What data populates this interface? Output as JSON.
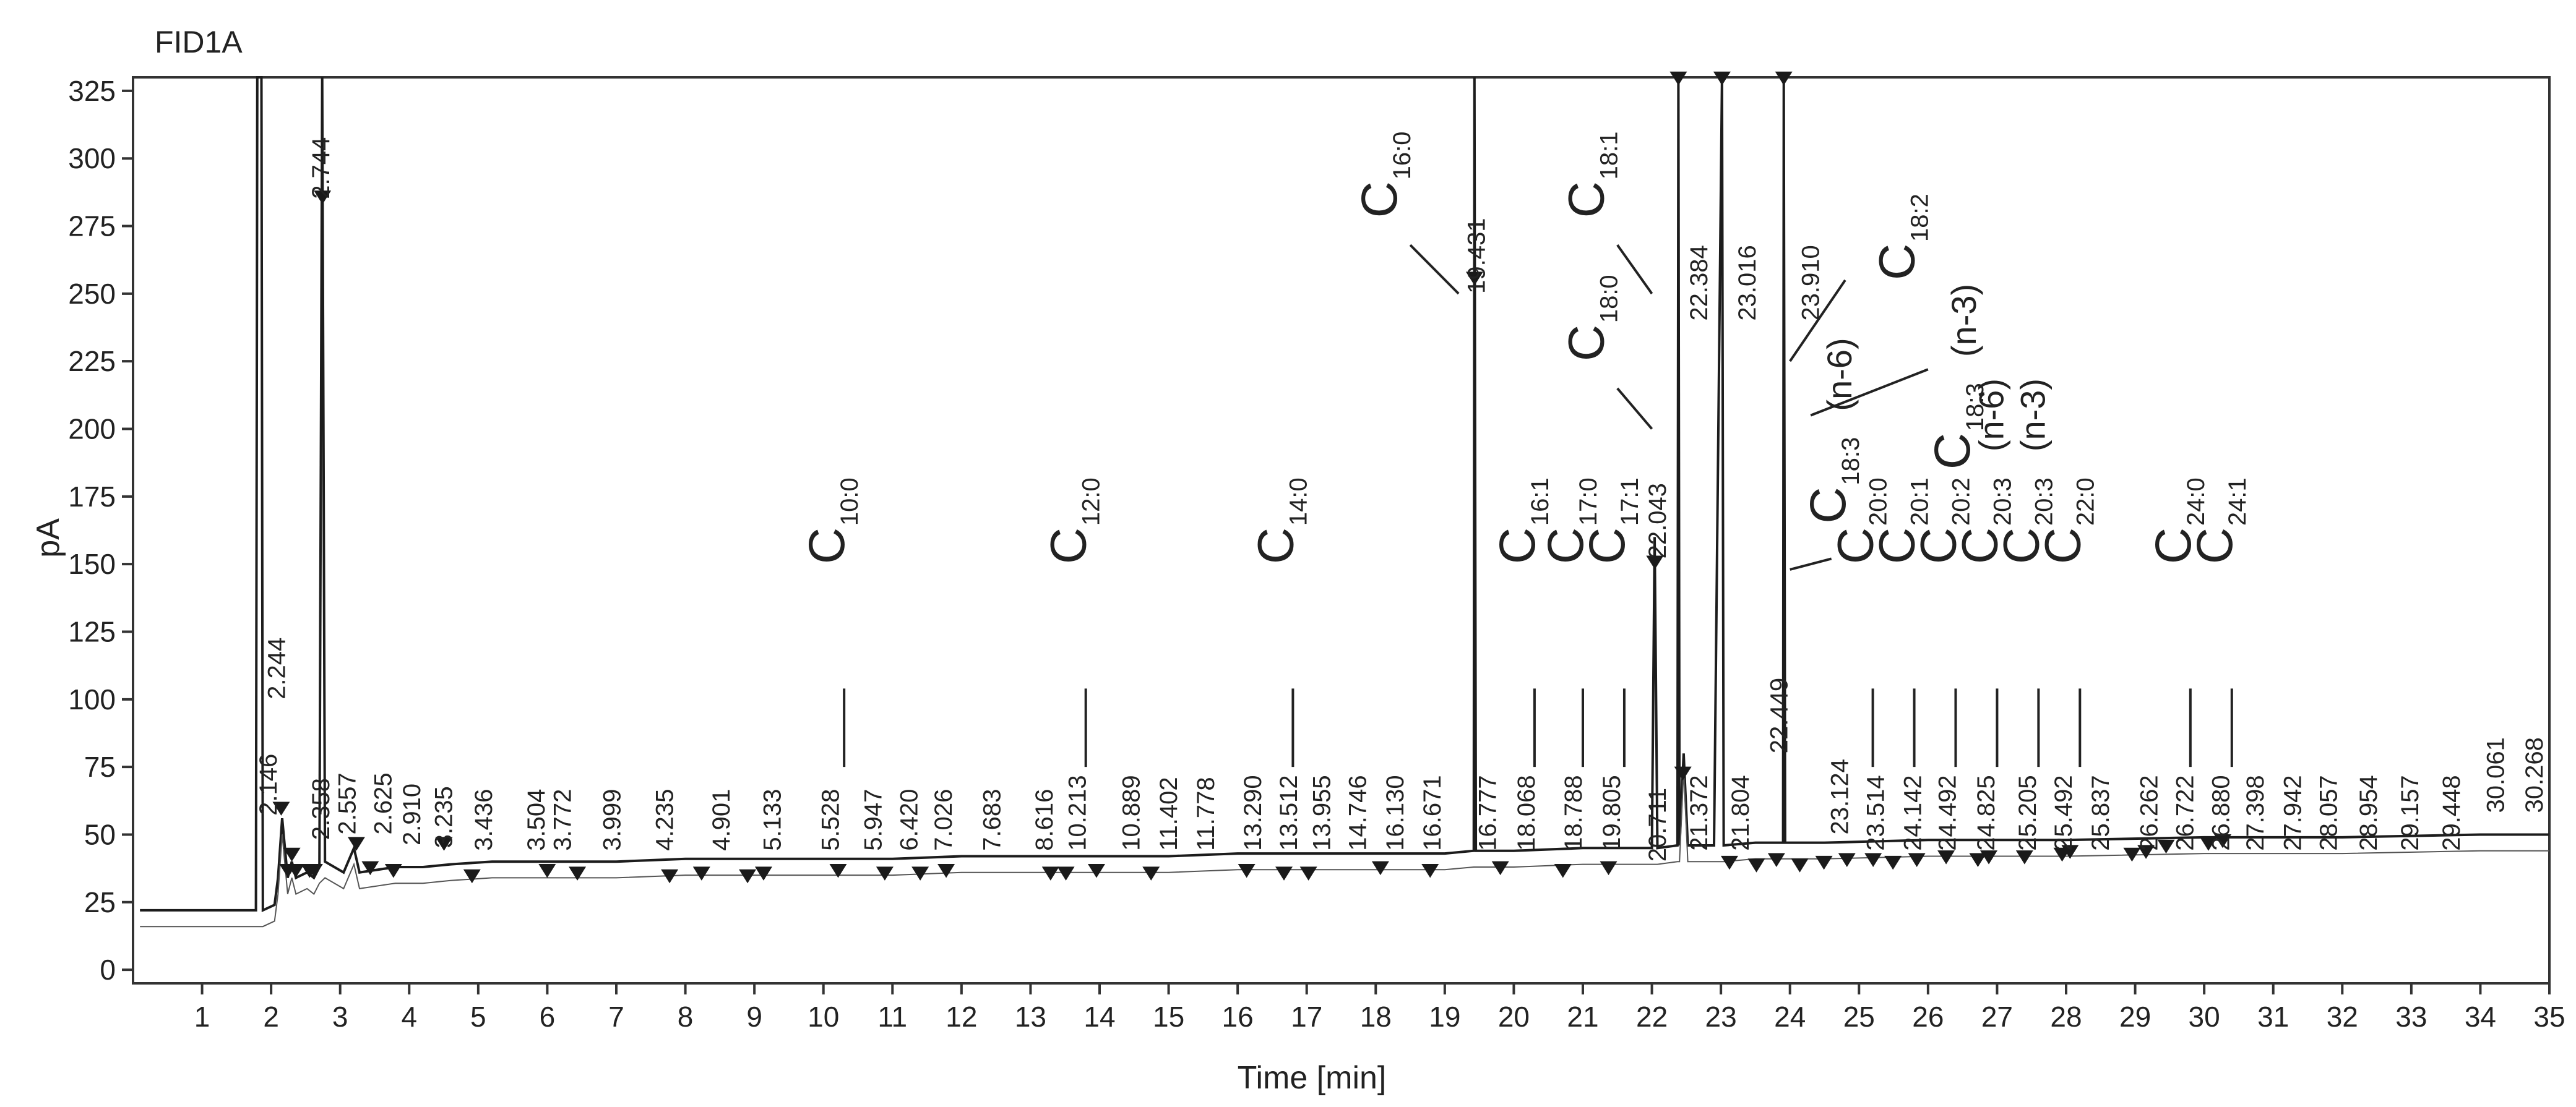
{
  "chart_data": {
    "type": "line",
    "title": "FID1A",
    "xlabel": "Time [min]",
    "ylabel": "pA",
    "xlim": [
      0,
      35
    ],
    "ylim": [
      -5,
      330
    ],
    "x_ticks": [
      1,
      2,
      3,
      4,
      5,
      6,
      7,
      8,
      9,
      10,
      11,
      12,
      13,
      14,
      15,
      16,
      17,
      18,
      19,
      20,
      21,
      22,
      23,
      24,
      25,
      26,
      27,
      28,
      29,
      30,
      31,
      32,
      33,
      34,
      35
    ],
    "y_ticks": [
      0,
      25,
      50,
      75,
      100,
      125,
      150,
      175,
      200,
      225,
      250,
      275,
      300,
      325
    ],
    "grid": false,
    "colors": {
      "trace": "#1c1c1c",
      "marker": "#1a1a1a",
      "text": "#222222",
      "axis": "#333333"
    },
    "series": [
      {
        "values": [
          [
            0.1,
            22
          ],
          [
            1.78,
            22
          ],
          [
            1.8,
            330
          ],
          [
            1.86,
            330
          ],
          [
            1.88,
            22
          ],
          [
            2.05,
            24
          ],
          [
            2.1,
            34
          ],
          [
            2.16,
            56
          ],
          [
            2.24,
            34
          ],
          [
            2.3,
            40
          ],
          [
            2.36,
            34
          ],
          [
            2.52,
            36
          ],
          [
            2.62,
            34
          ],
          [
            2.7,
            38
          ],
          [
            2.74,
            330
          ],
          [
            2.78,
            40
          ],
          [
            3.05,
            36
          ],
          [
            3.2,
            45
          ],
          [
            3.28,
            36
          ],
          [
            3.8,
            38
          ],
          [
            4.2,
            38
          ],
          [
            4.6,
            39
          ],
          [
            5.2,
            40
          ],
          [
            6.0,
            40
          ],
          [
            7.0,
            40
          ],
          [
            8.0,
            41
          ],
          [
            9.0,
            41
          ],
          [
            10.0,
            41
          ],
          [
            11.0,
            41
          ],
          [
            12.0,
            42
          ],
          [
            13.0,
            42
          ],
          [
            14.0,
            42
          ],
          [
            15.0,
            42
          ],
          [
            16.0,
            43
          ],
          [
            17.0,
            43
          ],
          [
            18.0,
            43
          ],
          [
            19.0,
            43
          ],
          [
            19.42,
            44
          ],
          [
            19.43,
            330
          ],
          [
            19.45,
            44
          ],
          [
            20.0,
            44
          ],
          [
            21.0,
            45
          ],
          [
            22.0,
            45
          ],
          [
            22.04,
            160
          ],
          [
            22.08,
            45
          ],
          [
            22.37,
            46
          ],
          [
            22.384,
            330
          ],
          [
            22.4,
            46
          ],
          [
            22.46,
            80
          ],
          [
            22.52,
            46
          ],
          [
            22.9,
            46
          ],
          [
            23.016,
            330
          ],
          [
            23.04,
            46
          ],
          [
            23.5,
            47
          ],
          [
            23.9,
            47
          ],
          [
            23.91,
            330
          ],
          [
            23.93,
            47
          ],
          [
            24.5,
            47
          ],
          [
            26.0,
            48
          ],
          [
            28.0,
            48
          ],
          [
            30.0,
            49
          ],
          [
            32.0,
            49
          ],
          [
            34.0,
            50
          ],
          [
            35.0,
            50
          ]
        ]
      }
    ],
    "peak_markers": [
      [
        2.146,
        57
      ],
      [
        2.244,
        34
      ],
      [
        2.358,
        34
      ],
      [
        2.3,
        40
      ],
      [
        2.744,
        283
      ],
      [
        2.557,
        34
      ],
      [
        2.625,
        34
      ],
      [
        3.235,
        44
      ],
      [
        3.436,
        35
      ],
      [
        3.772,
        34
      ],
      [
        4.504,
        44
      ],
      [
        4.91,
        32
      ],
      [
        5.999,
        34
      ],
      [
        6.436,
        33
      ],
      [
        7.772,
        32
      ],
      [
        8.235,
        33
      ],
      [
        8.901,
        32
      ],
      [
        9.133,
        33
      ],
      [
        10.213,
        34
      ],
      [
        10.889,
        33
      ],
      [
        11.402,
        33
      ],
      [
        11.778,
        34
      ],
      [
        13.29,
        33
      ],
      [
        13.512,
        33
      ],
      [
        13.955,
        34
      ],
      [
        14.746,
        33
      ],
      [
        16.13,
        34
      ],
      [
        16.671,
        33
      ],
      [
        17.026,
        33
      ],
      [
        18.068,
        35
      ],
      [
        18.788,
        34
      ],
      [
        19.431,
        253
      ],
      [
        19.805,
        35
      ],
      [
        20.711,
        34
      ],
      [
        21.372,
        35
      ],
      [
        22.043,
        148
      ],
      [
        22.384,
        327
      ],
      [
        22.449,
        70
      ],
      [
        23.016,
        327
      ],
      [
        23.91,
        327
      ],
      [
        23.124,
        37
      ],
      [
        23.514,
        36
      ],
      [
        23.804,
        38
      ],
      [
        24.142,
        36
      ],
      [
        24.492,
        37
      ],
      [
        24.825,
        38
      ],
      [
        25.205,
        38
      ],
      [
        25.492,
        37
      ],
      [
        25.837,
        38
      ],
      [
        26.262,
        39
      ],
      [
        26.722,
        38
      ],
      [
        26.88,
        39
      ],
      [
        27.398,
        39
      ],
      [
        27.942,
        40
      ],
      [
        28.057,
        41
      ],
      [
        28.954,
        40
      ],
      [
        29.157,
        41
      ],
      [
        29.448,
        43
      ],
      [
        30.061,
        44
      ],
      [
        30.268,
        45
      ]
    ],
    "retention_time_labels": [
      {
        "text": "2.146",
        "x": 2.08,
        "y": 57
      },
      {
        "text": "2.244",
        "x": 2.2,
        "y": 100
      },
      {
        "text": "2.744",
        "x": 2.84,
        "y": 285
      },
      {
        "text": "2.358",
        "x": 2.84,
        "y": 48
      },
      {
        "text": "2.557",
        "x": 3.22,
        "y": 50
      },
      {
        "text": "2.625",
        "x": 3.74,
        "y": 50
      },
      {
        "text": "2.910",
        "x": 4.16,
        "y": 46
      },
      {
        "text": "3.235",
        "x": 4.62,
        "y": 45
      },
      {
        "text": "3.436",
        "x": 5.2,
        "y": 44
      },
      {
        "text": "3.504",
        "x": 5.96,
        "y": 44
      },
      {
        "text": "3.772",
        "x": 6.34,
        "y": 44
      },
      {
        "text": "3.999",
        "x": 7.06,
        "y": 44
      },
      {
        "text": "4.235",
        "x": 7.82,
        "y": 44
      },
      {
        "text": "4.901",
        "x": 8.64,
        "y": 44
      },
      {
        "text": "5.133",
        "x": 9.38,
        "y": 44
      },
      {
        "text": "5.528",
        "x": 10.22,
        "y": 44
      },
      {
        "text": "5.947",
        "x": 10.84,
        "y": 44
      },
      {
        "text": "6.420",
        "x": 11.36,
        "y": 44
      },
      {
        "text": "7.026",
        "x": 11.86,
        "y": 44
      },
      {
        "text": "7.683",
        "x": 12.56,
        "y": 44
      },
      {
        "text": "8.616",
        "x": 13.32,
        "y": 44
      },
      {
        "text": "10.213",
        "x": 13.8,
        "y": 44
      },
      {
        "text": "10.889",
        "x": 14.58,
        "y": 44
      },
      {
        "text": "11.402",
        "x": 15.12,
        "y": 44
      },
      {
        "text": "11.778",
        "x": 15.66,
        "y": 44
      },
      {
        "text": "13.290",
        "x": 16.34,
        "y": 44
      },
      {
        "text": "13.512",
        "x": 16.86,
        "y": 44
      },
      {
        "text": "13.955",
        "x": 17.34,
        "y": 44
      },
      {
        "text": "14.746",
        "x": 17.86,
        "y": 44
      },
      {
        "text": "16.130",
        "x": 18.4,
        "y": 44
      },
      {
        "text": "16.671",
        "x": 18.94,
        "y": 44
      },
      {
        "text": "19.431",
        "x": 19.58,
        "y": 250
      },
      {
        "text": "16.777",
        "x": 19.74,
        "y": 44
      },
      {
        "text": "18.068",
        "x": 20.3,
        "y": 44
      },
      {
        "text": "18.788",
        "x": 20.98,
        "y": 44
      },
      {
        "text": "19.805",
        "x": 21.54,
        "y": 44
      },
      {
        "text": "20.711",
        "x": 22.2,
        "y": 40
      },
      {
        "text": "22.043",
        "x": 22.2,
        "y": 152
      },
      {
        "text": "22.384",
        "x": 22.8,
        "y": 240
      },
      {
        "text": "23.016",
        "x": 23.5,
        "y": 240
      },
      {
        "text": "23.910",
        "x": 24.42,
        "y": 240
      },
      {
        "text": "21.372",
        "x": 22.8,
        "y": 44
      },
      {
        "text": "21.804",
        "x": 23.4,
        "y": 44
      },
      {
        "text": "22.449",
        "x": 23.96,
        "y": 80
      },
      {
        "text": "23.124",
        "x": 24.84,
        "y": 50
      },
      {
        "text": "23.514",
        "x": 25.36,
        "y": 44
      },
      {
        "text": "24.142",
        "x": 25.9,
        "y": 44
      },
      {
        "text": "24.492",
        "x": 26.4,
        "y": 44
      },
      {
        "text": "24.825",
        "x": 26.96,
        "y": 44
      },
      {
        "text": "25.205",
        "x": 27.56,
        "y": 44
      },
      {
        "text": "25.492",
        "x": 28.08,
        "y": 44
      },
      {
        "text": "25.837",
        "x": 28.62,
        "y": 44
      },
      {
        "text": "26.262",
        "x": 29.32,
        "y": 44
      },
      {
        "text": "26.722",
        "x": 29.84,
        "y": 44
      },
      {
        "text": "26.880",
        "x": 30.36,
        "y": 44
      },
      {
        "text": "27.398",
        "x": 30.86,
        "y": 44
      },
      {
        "text": "27.942",
        "x": 31.4,
        "y": 44
      },
      {
        "text": "28.057",
        "x": 31.92,
        "y": 44
      },
      {
        "text": "28.954",
        "x": 32.5,
        "y": 44
      },
      {
        "text": "29.157",
        "x": 33.1,
        "y": 44
      },
      {
        "text": "29.448",
        "x": 33.7,
        "y": 44
      },
      {
        "text": "30.061",
        "x": 34.34,
        "y": 58
      },
      {
        "text": "30.268",
        "x": 34.9,
        "y": 58
      }
    ],
    "compound_annotations": [
      {
        "main": "C",
        "sub": "10:0",
        "x": 10.3,
        "y": 150,
        "leader": [
          [
            10.3,
            104
          ],
          [
            10.3,
            75
          ]
        ]
      },
      {
        "main": "C",
        "sub": "12:0",
        "x": 13.8,
        "y": 150,
        "leader": [
          [
            13.8,
            104
          ],
          [
            13.8,
            75
          ]
        ]
      },
      {
        "main": "C",
        "sub": "14:0",
        "x": 16.8,
        "y": 150,
        "leader": [
          [
            16.8,
            104
          ],
          [
            16.8,
            75
          ]
        ]
      },
      {
        "main": "C",
        "sub": "16:0",
        "x": 18.3,
        "y": 278,
        "leader": [
          [
            18.5,
            268
          ],
          [
            19.2,
            250
          ]
        ]
      },
      {
        "main": "C",
        "sub": "18:1",
        "x": 21.3,
        "y": 278,
        "leader": [
          [
            21.5,
            268
          ],
          [
            22.0,
            250
          ]
        ]
      },
      {
        "main": "C",
        "sub": "18:0",
        "x": 21.3,
        "y": 225,
        "leader": [
          [
            21.5,
            215
          ],
          [
            22.0,
            200
          ]
        ]
      },
      {
        "main": "C",
        "sub": "16:1",
        "x": 20.3,
        "y": 150,
        "leader": [
          [
            20.3,
            104
          ],
          [
            20.3,
            75
          ]
        ]
      },
      {
        "main": "C",
        "sub": "17:0",
        "x": 21.0,
        "y": 150,
        "leader": [
          [
            21.0,
            104
          ],
          [
            21.0,
            75
          ]
        ]
      },
      {
        "main": "C",
        "sub": "17:1",
        "x": 21.6,
        "y": 150,
        "leader": [
          [
            21.6,
            104
          ],
          [
            21.6,
            75
          ]
        ]
      },
      {
        "main": "C",
        "sub": "18:2",
        "x": 25.8,
        "y": 255,
        "leader": [
          [
            24.8,
            255
          ],
          [
            24.0,
            225
          ]
        ],
        "suffix": ""
      },
      {
        "main": "C",
        "sub": "18:3",
        "x": 26.6,
        "y": 185,
        "leader": [
          [
            26.0,
            222
          ],
          [
            24.3,
            205
          ]
        ],
        "suffix": "(n-3)"
      },
      {
        "main": "C",
        "sub": "18:3",
        "x": 24.8,
        "y": 165,
        "leader": [
          [
            24.6,
            152
          ],
          [
            24.0,
            148
          ]
        ],
        "suffix": "(n-6)"
      },
      {
        "main": "C",
        "sub": "20:0",
        "x": 25.2,
        "y": 150,
        "leader": [
          [
            25.2,
            104
          ],
          [
            25.2,
            75
          ]
        ]
      },
      {
        "main": "C",
        "sub": "20:1",
        "x": 25.8,
        "y": 150,
        "leader": [
          [
            25.8,
            104
          ],
          [
            25.8,
            75
          ]
        ]
      },
      {
        "main": "C",
        "sub": "20:2",
        "x": 26.4,
        "y": 150,
        "leader": [
          [
            26.4,
            104
          ],
          [
            26.4,
            75
          ]
        ]
      },
      {
        "main": "C",
        "sub": "20:3",
        "x": 27.0,
        "y": 150,
        "leader": [
          [
            27.0,
            104
          ],
          [
            27.0,
            75
          ]
        ],
        "suffix": "(n-6)"
      },
      {
        "main": "C",
        "sub": "20:3",
        "x": 27.6,
        "y": 150,
        "leader": [
          [
            27.6,
            104
          ],
          [
            27.6,
            75
          ]
        ],
        "suffix": "(n-3)"
      },
      {
        "main": "C",
        "sub": "22:0",
        "x": 28.2,
        "y": 150,
        "leader": [
          [
            28.2,
            104
          ],
          [
            28.2,
            75
          ]
        ]
      },
      {
        "main": "C",
        "sub": "24:0",
        "x": 29.8,
        "y": 150,
        "leader": [
          [
            29.8,
            104
          ],
          [
            29.8,
            75
          ]
        ]
      },
      {
        "main": "C",
        "sub": "24:1",
        "x": 30.4,
        "y": 150,
        "leader": [
          [
            30.4,
            104
          ],
          [
            30.4,
            75
          ]
        ]
      }
    ]
  }
}
